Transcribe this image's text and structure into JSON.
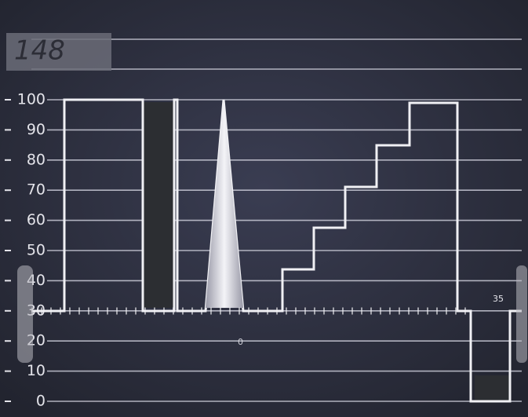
{
  "label": "148",
  "scale": {
    "ticks": [
      0,
      10,
      20,
      30,
      40,
      50,
      60,
      70,
      80,
      90,
      100
    ],
    "min": 0,
    "max": 100
  },
  "annotations": {
    "top_right": "35",
    "center": "0"
  }
}
